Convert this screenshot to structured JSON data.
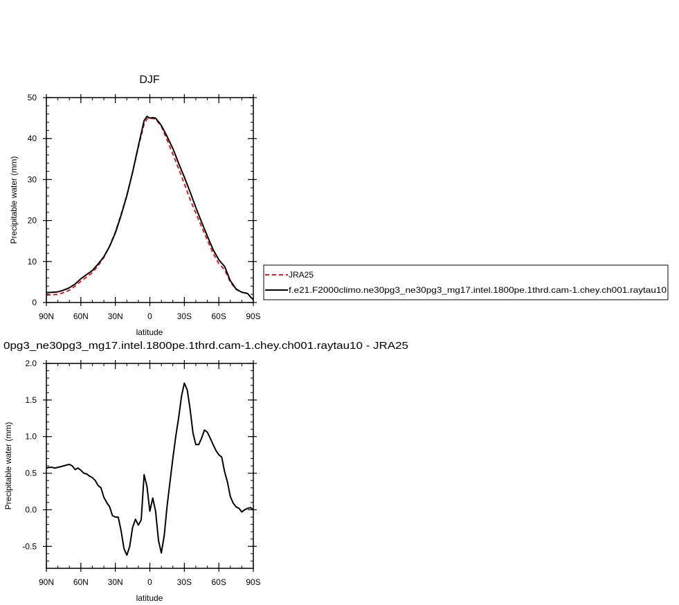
{
  "colors": {
    "jra": "#e31a1c",
    "model": "#000000",
    "axis": "#000000"
  },
  "chart_data": [
    {
      "type": "line",
      "title": "DJF",
      "xlabel": "latitude",
      "ylabel": "Precipitable water (mm)",
      "xlim": [
        90,
        -90
      ],
      "ylim": [
        0,
        50
      ],
      "x_ticks": [
        {
          "value": 90,
          "label": "90N"
        },
        {
          "value": 60,
          "label": "60N"
        },
        {
          "value": 30,
          "label": "30N"
        },
        {
          "value": 0,
          "label": "0"
        },
        {
          "value": -30,
          "label": "30S"
        },
        {
          "value": -60,
          "label": "60S"
        },
        {
          "value": -90,
          "label": "90S"
        }
      ],
      "y_ticks": [
        {
          "value": 0,
          "label": "0"
        },
        {
          "value": 10,
          "label": "10"
        },
        {
          "value": 20,
          "label": "20"
        },
        {
          "value": 30,
          "label": "30"
        },
        {
          "value": 40,
          "label": "40"
        },
        {
          "value": 50,
          "label": "50"
        }
      ],
      "legend": {
        "placement": "right",
        "entries": [
          {
            "label": "JRA25",
            "color": "#e31a1c",
            "dash": true
          },
          {
            "label": "f.e21.F2000climo.ne30pg3_ne30pg3_mg17.intel.1800pe.1thrd.cam-1.chey.ch001.raytau10",
            "color": "#000000",
            "dash": false
          }
        ]
      },
      "series": [
        {
          "name": "JRA25",
          "color": "#e31a1c",
          "dash": true,
          "x": [
            90,
            85,
            80,
            75,
            70,
            65,
            60,
            55,
            50,
            45,
            40,
            35,
            30,
            25,
            20,
            15,
            10,
            5,
            2.5,
            0,
            -2.5,
            -5,
            -10,
            -15,
            -20,
            -25,
            -30,
            -35,
            -40,
            -45,
            -50,
            -55,
            -60,
            -65,
            -70,
            -75,
            -80,
            -85,
            -88,
            -90
          ],
          "y": [
            1.8,
            1.9,
            2.0,
            2.4,
            3.0,
            4.0,
            5.2,
            6.2,
            7.3,
            9.0,
            11.0,
            13.8,
            17.2,
            21.5,
            26.2,
            31.8,
            38.0,
            43.5,
            44.8,
            45.0,
            44.9,
            44.8,
            43.0,
            39.7,
            36.2,
            32.7,
            29.0,
            25.2,
            21.8,
            18.5,
            15.2,
            12.0,
            9.5,
            8.0,
            5.0,
            3.2,
            2.5,
            2.2,
            1.2,
            0.7
          ]
        },
        {
          "name": "f.e21.F2000climo.ne30pg3_ne30pg3_mg17.intel.1800pe.1thrd.cam-1.chey.ch001.raytau10",
          "color": "#000000",
          "dash": false,
          "x": [
            90,
            85,
            80,
            75,
            70,
            65,
            60,
            55,
            50,
            45,
            40,
            35,
            30,
            25,
            20,
            15,
            10,
            5,
            2.5,
            0,
            -2.5,
            -5,
            -10,
            -15,
            -20,
            -25,
            -30,
            -35,
            -40,
            -45,
            -50,
            -55,
            -60,
            -65,
            -70,
            -75,
            -80,
            -85,
            -88,
            -90
          ],
          "y": [
            2.4,
            2.5,
            2.6,
            3.0,
            3.6,
            4.5,
            5.8,
            6.8,
            7.8,
            9.4,
            11.2,
            13.7,
            17.0,
            21.3,
            26.1,
            31.8,
            38.2,
            44.4,
            45.4,
            45.0,
            45.1,
            45.0,
            43.2,
            40.5,
            37.6,
            34.0,
            30.6,
            27.0,
            23.2,
            19.6,
            16.2,
            12.9,
            10.4,
            8.8,
            5.3,
            3.3,
            2.5,
            2.2,
            1.2,
            0.7
          ]
        }
      ]
    },
    {
      "type": "line",
      "title": "0pg3_ne30pg3_mg17.intel.1800pe.1thrd.cam-1.chey.ch001.raytau10 - JRA25",
      "xlabel": "latitude",
      "ylabel": "Precipitable water (mm)",
      "xlim": [
        90,
        -90
      ],
      "ylim": [
        -0.8,
        2.0
      ],
      "x_ticks": [
        {
          "value": 90,
          "label": "90N"
        },
        {
          "value": 60,
          "label": "60N"
        },
        {
          "value": 30,
          "label": "30N"
        },
        {
          "value": 0,
          "label": "0"
        },
        {
          "value": -30,
          "label": "30S"
        },
        {
          "value": -60,
          "label": "60S"
        },
        {
          "value": -90,
          "label": "90S"
        }
      ],
      "y_ticks": [
        {
          "value": -0.5,
          "label": "-0.5"
        },
        {
          "value": 0,
          "label": "0.0"
        },
        {
          "value": 0.5,
          "label": "0.5"
        },
        {
          "value": 1.0,
          "label": "1.0"
        },
        {
          "value": 1.5,
          "label": "1.5"
        },
        {
          "value": 2.0,
          "label": "2.0"
        }
      ],
      "series": [
        {
          "color": "#000000",
          "dash": false,
          "x": [
            90,
            87.5,
            85,
            82.5,
            80,
            77.5,
            75,
            72.5,
            70,
            67.5,
            65,
            62.5,
            60,
            57.5,
            55,
            52.5,
            50,
            47.5,
            45,
            42.5,
            40,
            37.5,
            35,
            32.5,
            30,
            27.5,
            25,
            22.5,
            20,
            17.5,
            15,
            12.5,
            10,
            7.5,
            5,
            2.5,
            0,
            -2.5,
            -5,
            -7.5,
            -10,
            -12.5,
            -15,
            -17.5,
            -20,
            -22.5,
            -25,
            -27.5,
            -30,
            -32.5,
            -35,
            -37.5,
            -40,
            -42.5,
            -45,
            -47.5,
            -50,
            -52.5,
            -55,
            -57.5,
            -60,
            -62.5,
            -65,
            -67.5,
            -70,
            -72.5,
            -75,
            -77.5,
            -80,
            -82.5,
            -85,
            -87.5,
            -90
          ],
          "y": [
            0.57,
            0.58,
            0.58,
            0.57,
            0.58,
            0.59,
            0.6,
            0.61,
            0.62,
            0.6,
            0.55,
            0.57,
            0.54,
            0.5,
            0.49,
            0.46,
            0.44,
            0.4,
            0.33,
            0.3,
            0.17,
            0.1,
            0.04,
            -0.08,
            -0.1,
            -0.1,
            -0.29,
            -0.53,
            -0.62,
            -0.5,
            -0.24,
            -0.13,
            -0.21,
            -0.14,
            0.48,
            0.32,
            -0.02,
            0.16,
            -0.02,
            -0.42,
            -0.59,
            -0.35,
            0.05,
            0.38,
            0.7,
            1.0,
            1.25,
            1.55,
            1.73,
            1.64,
            1.38,
            1.05,
            0.89,
            0.89,
            0.98,
            1.09,
            1.06,
            0.98,
            0.89,
            0.81,
            0.75,
            0.72,
            0.52,
            0.38,
            0.18,
            0.09,
            0.04,
            0.02,
            -0.03,
            0.0,
            0.02,
            0.03,
            0.0
          ]
        }
      ]
    }
  ]
}
